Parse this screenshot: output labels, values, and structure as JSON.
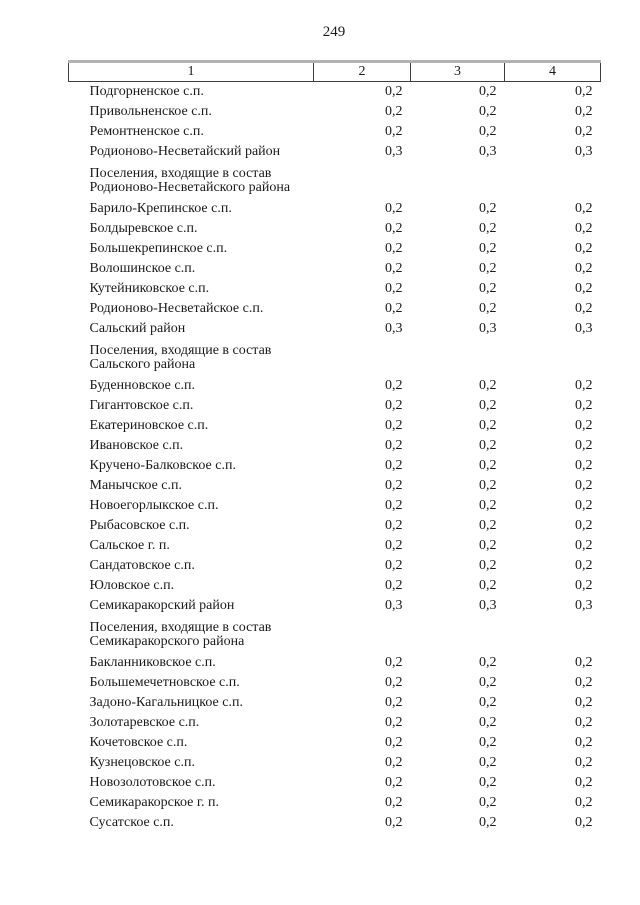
{
  "page": {
    "number": "249"
  },
  "colors": {
    "background": "#ffffff",
    "text": "#1a1a1a",
    "border_dark": "#3d3d3d",
    "border_light": "#b2b2b2"
  },
  "table": {
    "headers": [
      "1",
      "2",
      "3",
      "4"
    ],
    "rows": [
      {
        "name": "Подгорненское с.п.",
        "values": [
          "0,2",
          "0,2",
          "0,2"
        ]
      },
      {
        "name": "Привольненское с.п.",
        "values": [
          "0,2",
          "0,2",
          "0,2"
        ]
      },
      {
        "name": "Ремонтненское с.п.",
        "values": [
          "0,2",
          "0,2",
          "0,2"
        ]
      },
      {
        "name": "Родионово-Несветайский район",
        "values": [
          "0,3",
          "0,3",
          "0,3"
        ]
      },
      {
        "group": [
          "Поселения, входящие в состав",
          "Родионово-Несветайского района"
        ]
      },
      {
        "name": "Барило-Крепинское с.п.",
        "values": [
          "0,2",
          "0,2",
          "0,2"
        ]
      },
      {
        "name": "Болдыревское с.п.",
        "values": [
          "0,2",
          "0,2",
          "0,2"
        ]
      },
      {
        "name": "Большекрепинское с.п.",
        "values": [
          "0,2",
          "0,2",
          "0,2"
        ]
      },
      {
        "name": "Волошинское с.п.",
        "values": [
          "0,2",
          "0,2",
          "0,2"
        ]
      },
      {
        "name": "Кутейниковское с.п.",
        "values": [
          "0,2",
          "0,2",
          "0,2"
        ]
      },
      {
        "name": "Родионово-Несветайское с.п.",
        "values": [
          "0,2",
          "0,2",
          "0,2"
        ]
      },
      {
        "name": "Сальский район",
        "values": [
          "0,3",
          "0,3",
          "0,3"
        ]
      },
      {
        "group": [
          "Поселения, входящие в состав",
          "Сальского района"
        ]
      },
      {
        "name": "Буденновское с.п.",
        "values": [
          "0,2",
          "0,2",
          "0,2"
        ]
      },
      {
        "name": "Гигантовское с.п.",
        "values": [
          "0,2",
          "0,2",
          "0,2"
        ]
      },
      {
        "name": "Екатериновское с.п.",
        "values": [
          "0,2",
          "0,2",
          "0,2"
        ]
      },
      {
        "name": "Ивановское с.п.",
        "values": [
          "0,2",
          "0,2",
          "0,2"
        ]
      },
      {
        "name": "Кручено-Балковское с.п.",
        "values": [
          "0,2",
          "0,2",
          "0,2"
        ]
      },
      {
        "name": "Манычское с.п.",
        "values": [
          "0,2",
          "0,2",
          "0,2"
        ]
      },
      {
        "name": "Новоегорлыкское с.п.",
        "values": [
          "0,2",
          "0,2",
          "0,2"
        ]
      },
      {
        "name": "Рыбасовское с.п.",
        "values": [
          "0,2",
          "0,2",
          "0,2"
        ]
      },
      {
        "name": "Сальское г. п.",
        "values": [
          "0,2",
          "0,2",
          "0,2"
        ]
      },
      {
        "name": "Сандатовское с.п.",
        "values": [
          "0,2",
          "0,2",
          "0,2"
        ]
      },
      {
        "name": "Юловское с.п.",
        "values": [
          "0,2",
          "0,2",
          "0,2"
        ]
      },
      {
        "name": "Семикаракорский район",
        "values": [
          "0,3",
          "0,3",
          "0,3"
        ]
      },
      {
        "group": [
          "Поселения, входящие в состав",
          "Семикаракорского района"
        ]
      },
      {
        "name": "Бакланниковское с.п.",
        "values": [
          "0,2",
          "0,2",
          "0,2"
        ]
      },
      {
        "name": "Большемечетновское с.п.",
        "values": [
          "0,2",
          "0,2",
          "0,2"
        ]
      },
      {
        "name": "Задоно-Кагальницкое с.п.",
        "values": [
          "0,2",
          "0,2",
          "0,2"
        ]
      },
      {
        "name": "Золотаревское с.п.",
        "values": [
          "0,2",
          "0,2",
          "0,2"
        ]
      },
      {
        "name": "Кочетовское с.п.",
        "values": [
          "0,2",
          "0,2",
          "0,2"
        ]
      },
      {
        "name": "Кузнецовское с.п.",
        "values": [
          "0,2",
          "0,2",
          "0,2"
        ]
      },
      {
        "name": "Новозолотовское с.п.",
        "values": [
          "0,2",
          "0,2",
          "0,2"
        ]
      },
      {
        "name": "Семикаракорское г. п.",
        "values": [
          "0,2",
          "0,2",
          "0,2"
        ]
      },
      {
        "name": "Сусатское с.п.",
        "values": [
          "0,2",
          "0,2",
          "0,2"
        ]
      }
    ]
  }
}
